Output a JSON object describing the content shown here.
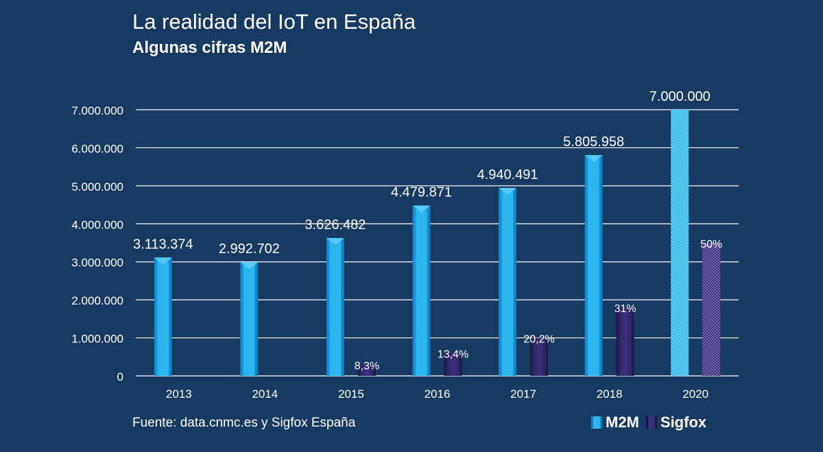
{
  "header": {
    "title": "La realidad del IoT en España",
    "subtitle": "Algunas cifras M2M"
  },
  "footer": {
    "source": "Fuente: data.cnmc.es y Sigfox España"
  },
  "colors": {
    "background": "#173a63",
    "m2m": "#2bb6ee",
    "m2m_dark": "#1480c4",
    "sigfox": "#3b2f7a",
    "sigfox_dark": "#1a1640",
    "grid": "#ffffff"
  },
  "chart_data": {
    "type": "bar",
    "title": "La realidad del IoT en España",
    "subtitle": "Algunas cifras M2M",
    "categories": [
      "2013",
      "2014",
      "2015",
      "2016",
      "2017",
      "2018",
      "2020"
    ],
    "series": [
      {
        "name": "M2M",
        "values": [
          3113374,
          2992702,
          3626482,
          4479871,
          4940491,
          5805958,
          7000000
        ],
        "labels": [
          "3.113.374",
          "2.992.702",
          "3.626.482",
          "4.479.871",
          "4.940.491",
          "5.805.958",
          "7.000.000"
        ],
        "projected": [
          false,
          false,
          false,
          false,
          false,
          false,
          true
        ]
      },
      {
        "name": "Sigfox",
        "values": [
          0,
          0,
          300000,
          600000,
          1000000,
          1800000,
          3500000
        ],
        "labels": [
          "",
          "",
          "8,3%",
          "13,4%",
          "20,2%",
          "31%",
          "50%"
        ],
        "projected": [
          false,
          false,
          false,
          false,
          false,
          false,
          true
        ]
      }
    ],
    "yticks": [
      0,
      1000000,
      2000000,
      3000000,
      4000000,
      5000000,
      6000000,
      7000000
    ],
    "ytick_labels": [
      "0",
      "1.000.000",
      "2.000.000",
      "3.000.000",
      "4.000.000",
      "5.000.000",
      "6.000.000",
      "7.000.000"
    ],
    "ylim": [
      0,
      7000000
    ],
    "grid": true,
    "legend": "bottom-right"
  }
}
